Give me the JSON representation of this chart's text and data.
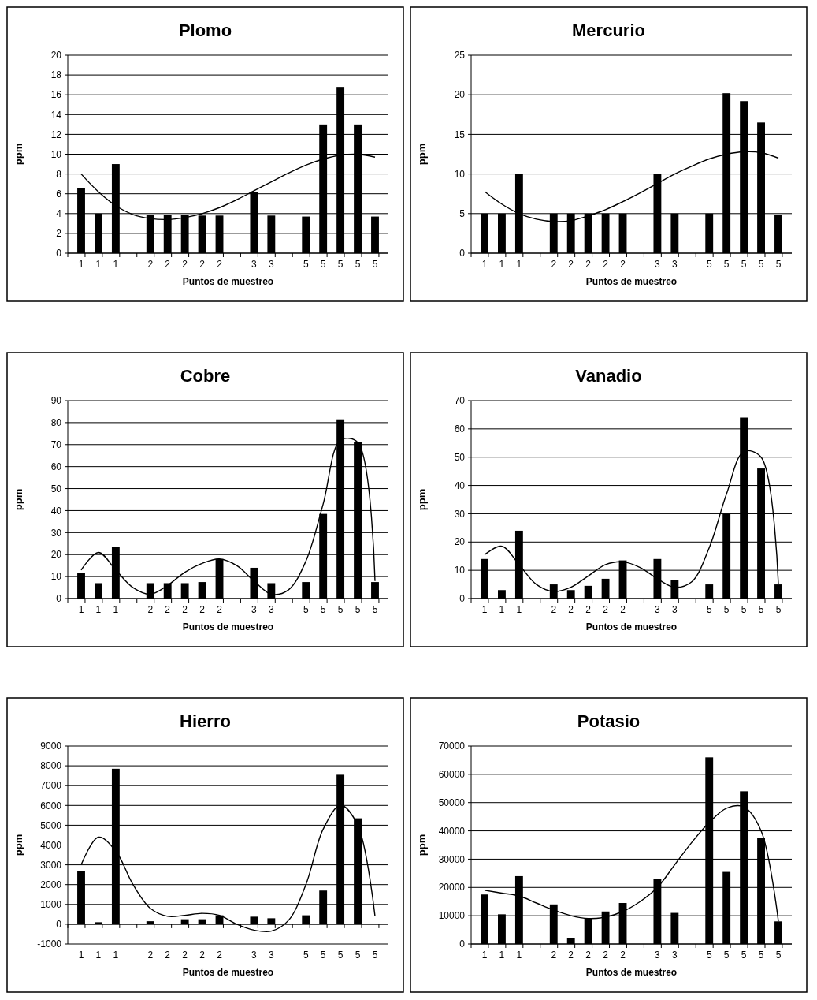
{
  "chart_data": [
    {
      "type": "bar",
      "title": "Plomo",
      "xlabel": "Puntos de muestreo",
      "ylabel": "ppm",
      "categories": [
        "1",
        "1",
        "1",
        null,
        "2",
        "2",
        "2",
        "2",
        "2",
        null,
        "3",
        "3",
        null,
        "5",
        "5",
        "5",
        "5",
        "5"
      ],
      "ylim": [
        0,
        20
      ],
      "yticks": [
        0,
        2,
        4,
        6,
        8,
        10,
        12,
        14,
        16,
        18,
        20
      ],
      "grid": "y",
      "series": [
        {
          "color": "#000000",
          "values": [
            6.6,
            4,
            9,
            null,
            3.9,
            3.9,
            3.9,
            3.8,
            3.8,
            null,
            6.2,
            3.8,
            null,
            3.7,
            13,
            16.8,
            13,
            3.7
          ]
        },
        {
          "type": "line",
          "color": "#000000",
          "values": [
            8,
            6.2,
            4.8,
            3.9,
            3.5,
            3.4,
            3.6,
            4,
            4.6,
            5.4,
            6.3,
            7.2,
            8.1,
            8.9,
            9.5,
            9.9,
            10,
            9.7
          ]
        }
      ]
    },
    {
      "type": "bar",
      "title": "Mercurio",
      "xlabel": "Puntos de muestreo",
      "ylabel": "ppm",
      "categories": [
        "1",
        "1",
        "1",
        null,
        "2",
        "2",
        "2",
        "2",
        "2",
        null,
        "3",
        "3",
        null,
        "5",
        "5",
        "5",
        "5",
        "5"
      ],
      "ylim": [
        0,
        25
      ],
      "yticks": [
        0,
        5,
        10,
        15,
        20,
        25
      ],
      "grid": "y",
      "series": [
        {
          "color": "#000000",
          "values": [
            5,
            5,
            10,
            null,
            5,
            5,
            5,
            5,
            5,
            null,
            10,
            5,
            null,
            5,
            20.2,
            19.2,
            16.5,
            4.8
          ]
        },
        {
          "type": "line",
          "color": "#000000",
          "values": [
            7.8,
            6.2,
            5,
            4.3,
            4,
            4.1,
            4.7,
            5.5,
            6.5,
            7.6,
            8.8,
            10,
            11,
            11.9,
            12.5,
            12.8,
            12.7,
            12
          ]
        }
      ]
    },
    {
      "type": "bar",
      "title": "Cobre",
      "xlabel": "Puntos de muestreo",
      "ylabel": "ppm",
      "categories": [
        "1",
        "1",
        "1",
        null,
        "2",
        "2",
        "2",
        "2",
        "2",
        null,
        "3",
        "3",
        null,
        "5",
        "5",
        "5",
        "5",
        "5"
      ],
      "ylim": [
        0,
        90
      ],
      "yticks": [
        0,
        10,
        20,
        30,
        40,
        50,
        60,
        70,
        80,
        90
      ],
      "grid": "y",
      "series": [
        {
          "color": "#000000",
          "values": [
            11.5,
            7,
            23.5,
            null,
            7,
            7,
            7,
            7.5,
            18,
            null,
            14,
            7,
            null,
            7.5,
            38.5,
            81.5,
            71,
            7.5
          ]
        },
        {
          "type": "line",
          "color": "#000000",
          "values": [
            13,
            21,
            13,
            5,
            2,
            6,
            12,
            16,
            18,
            15,
            8,
            2,
            4,
            17,
            43,
            72,
            71,
            8
          ]
        }
      ]
    },
    {
      "type": "bar",
      "title": "Vanadio",
      "xlabel": "Puntos de muestreo",
      "ylabel": "ppm",
      "categories": [
        "1",
        "1",
        "1",
        null,
        "2",
        "2",
        "2",
        "2",
        "2",
        null,
        "3",
        "3",
        null,
        "5",
        "5",
        "5",
        "5",
        "5"
      ],
      "ylim": [
        0,
        70
      ],
      "yticks": [
        0,
        10,
        20,
        30,
        40,
        50,
        60,
        70
      ],
      "grid": "y",
      "series": [
        {
          "color": "#000000",
          "values": [
            14,
            3,
            24,
            null,
            5,
            3,
            4.5,
            7,
            13.5,
            null,
            14,
            6.5,
            null,
            5,
            30,
            64,
            46,
            5
          ]
        },
        {
          "type": "line",
          "color": "#000000",
          "values": [
            15.5,
            18.5,
            12,
            5,
            2.5,
            4,
            8,
            12,
            13,
            11,
            7,
            4,
            6,
            18,
            37,
            52,
            50,
            5
          ]
        }
      ]
    },
    {
      "type": "bar",
      "title": "Hierro",
      "xlabel": "Puntos de muestreo",
      "ylabel": "ppm",
      "categories": [
        "1",
        "1",
        "1",
        null,
        "2",
        "2",
        "2",
        "2",
        "2",
        null,
        "3",
        "3",
        null,
        "5",
        "5",
        "5",
        "5",
        "5"
      ],
      "ylim": [
        -1000,
        9000
      ],
      "yticks": [
        -1000,
        0,
        1000,
        2000,
        3000,
        4000,
        5000,
        6000,
        7000,
        8000,
        9000
      ],
      "grid": "y",
      "series": [
        {
          "color": "#000000",
          "values": [
            2700,
            100,
            7850,
            null,
            150,
            0,
            250,
            250,
            450,
            null,
            380,
            300,
            null,
            450,
            1700,
            7550,
            5350,
            0
          ]
        },
        {
          "type": "line",
          "color": "#000000",
          "values": [
            3000,
            4400,
            3700,
            2000,
            800,
            400,
            450,
            550,
            450,
            0,
            -300,
            -350,
            200,
            2000,
            4800,
            6000,
            5000,
            400
          ]
        }
      ]
    },
    {
      "type": "bar",
      "title": "Potasio",
      "xlabel": "Puntos de muestreo",
      "ylabel": "ppm",
      "categories": [
        "1",
        "1",
        "1",
        null,
        "2",
        "2",
        "2",
        "2",
        "2",
        null,
        "3",
        "3",
        null,
        "5",
        "5",
        "5",
        "5",
        "5"
      ],
      "ylim": [
        0,
        70000
      ],
      "yticks": [
        0,
        10000,
        20000,
        30000,
        40000,
        50000,
        60000,
        70000
      ],
      "grid": "y",
      "series": [
        {
          "color": "#000000",
          "values": [
            17500,
            10500,
            24000,
            null,
            14000,
            2000,
            9000,
            11500,
            14500,
            null,
            23000,
            11000,
            null,
            66000,
            25500,
            54000,
            37500,
            8000
          ]
        },
        {
          "type": "line",
          "color": "#000000",
          "values": [
            19000,
            18000,
            17000,
            14500,
            12000,
            10000,
            9000,
            9500,
            11500,
            15000,
            20000,
            28000,
            36000,
            43000,
            48000,
            48500,
            40000,
            8000
          ]
        }
      ]
    }
  ]
}
